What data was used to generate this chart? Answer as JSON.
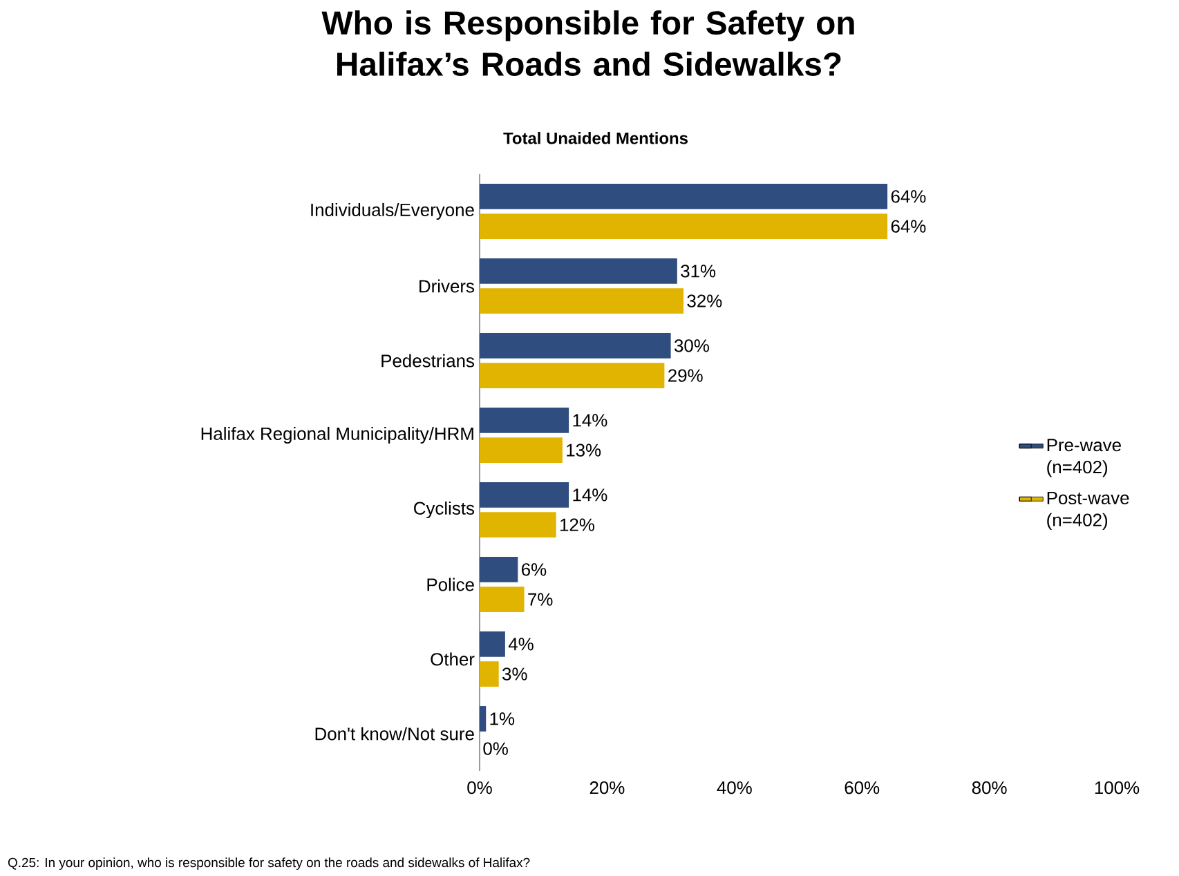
{
  "chart_data": {
    "type": "bar",
    "orientation": "horizontal",
    "title": "Who is Responsible for Safety on Halifax’s Roads and Sidewalks?",
    "subtitle": "Total Unaided Mentions",
    "categories": [
      "Individuals/Everyone",
      "Drivers",
      "Pedestrians",
      "Halifax Regional Municipality/HRM",
      "Cyclists",
      "Police",
      "Other",
      "Don't know/Not sure"
    ],
    "series": [
      {
        "name": "Pre-wave (n=402)",
        "color": "#2f4d7e",
        "values": [
          64,
          31,
          30,
          14,
          14,
          6,
          4,
          1
        ],
        "value_labels": [
          "64%",
          "31%",
          "30%",
          "14%",
          "14%",
          "6%",
          "4%",
          "1%"
        ]
      },
      {
        "name": "Post-wave (n=402)",
        "color": "#e0b400",
        "values": [
          64,
          32,
          29,
          13,
          12,
          7,
          3,
          0
        ],
        "value_labels": [
          "64%",
          "32%",
          "29%",
          "13%",
          "12%",
          "7%",
          "3%",
          "0%"
        ]
      }
    ],
    "xlim": [
      0,
      100
    ],
    "xticks": [
      {
        "value": 0,
        "label": "0%"
      },
      {
        "value": 20,
        "label": "20%"
      },
      {
        "value": 40,
        "label": "40%"
      },
      {
        "value": 60,
        "label": "60%"
      },
      {
        "value": 80,
        "label": "80%"
      },
      {
        "value": 100,
        "label": "100%"
      }
    ],
    "legend": "right",
    "grid": false,
    "annotations": [
      "Q.25: In your opinion, who is responsible for safety on the roads and sidewalks of Halifax?"
    ]
  }
}
